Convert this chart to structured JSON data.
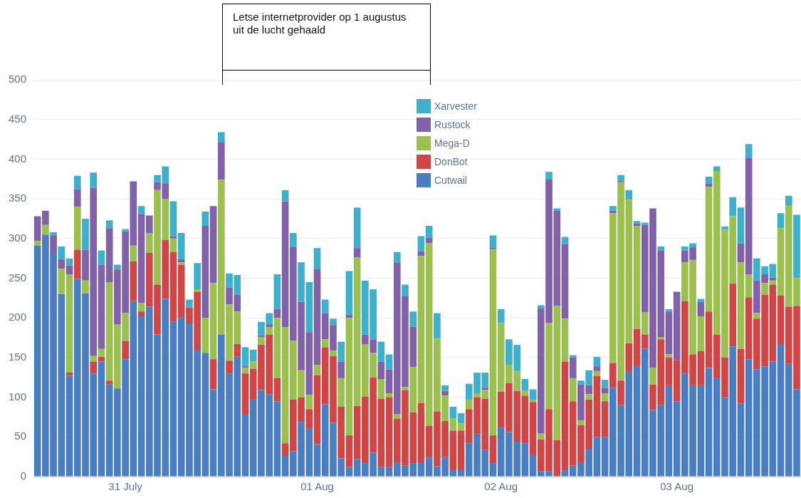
{
  "chart_data": {
    "type": "bar",
    "stacked": true,
    "categories": [
      null,
      null,
      null,
      null,
      null,
      null,
      null,
      null,
      null,
      null,
      null,
      "31 July",
      null,
      null,
      null,
      null,
      null,
      null,
      null,
      null,
      null,
      null,
      null,
      null,
      null,
      null,
      null,
      null,
      null,
      null,
      null,
      null,
      null,
      null,
      null,
      "01 Aug",
      null,
      null,
      null,
      null,
      null,
      null,
      null,
      null,
      null,
      null,
      null,
      null,
      null,
      null,
      null,
      null,
      null,
      null,
      null,
      null,
      null,
      null,
      "02 Aug",
      null,
      null,
      null,
      null,
      null,
      null,
      null,
      null,
      null,
      null,
      null,
      null,
      null,
      null,
      null,
      null,
      null,
      null,
      null,
      null,
      null,
      "03 Aug",
      null,
      null,
      null,
      null,
      null,
      null,
      null,
      null,
      null,
      null,
      null,
      null,
      null,
      null,
      null
    ],
    "series": [
      {
        "name": "Cutwail",
        "color": "#4a7ec2",
        "values": [
          291,
          305,
          281,
          230,
          127,
          249,
          231,
          130,
          145,
          116,
          111,
          148,
          221,
          202,
          214,
          179,
          224,
          195,
          201,
          193,
          159,
          156,
          110,
          179,
          130,
          151,
          79,
          97,
          109,
          104,
          95,
          26,
          32,
          69,
          61,
          41,
          91,
          68,
          23,
          12,
          22,
          17,
          30,
          12,
          12,
          18,
          14,
          17,
          17,
          24,
          13,
          25,
          9,
          9,
          42,
          54,
          34,
          17,
          62,
          56,
          44,
          42,
          27,
          7,
          7,
          0,
          8,
          14,
          18,
          35,
          50,
          50,
          112,
          90,
          132,
          140,
          161,
          84,
          90,
          115,
          95,
          130,
          115,
          115,
          137,
          124,
          100,
          164,
          92,
          148,
          135,
          139,
          145,
          167,
          142,
          110
        ]
      },
      {
        "name": "DonBot",
        "color": "#d04545",
        "values": [
          0,
          0,
          0,
          0,
          4,
          37,
          0,
          15,
          6,
          5,
          0,
          23,
          50,
          6,
          68,
          63,
          74,
          88,
          66,
          20,
          74,
          0,
          38,
          0,
          16,
          16,
          51,
          39,
          57,
          75,
          29,
          16,
          65,
          31,
          24,
          87,
          72,
          84,
          65,
          40,
          67,
          84,
          95,
          86,
          88,
          55,
          95,
          64,
          76,
          40,
          69,
          45,
          49,
          49,
          43,
          46,
          64,
          35,
          45,
          62,
          64,
          60,
          67,
          40,
          78,
          46,
          137,
          81,
          47,
          62,
          77,
          45,
          31,
          31,
          36,
          46,
          18,
          32,
          83,
          35,
          52,
          91,
          39,
          43,
          71,
          55,
          50,
          79,
          69,
          78,
          64,
          90,
          97,
          61,
          72,
          105
        ]
      },
      {
        "name": "Mega-D",
        "color": "#9bc04f",
        "values": [
          6,
          12,
          0,
          32,
          124,
          54,
          16,
          7,
          10,
          124,
          81,
          35,
          20,
          11,
          25,
          119,
          52,
          17,
          3,
          0,
          3,
          44,
          96,
          195,
          71,
          41,
          7,
          9,
          10,
          9,
          76,
          146,
          74,
          34,
          18,
          13,
          10,
          7,
          36,
          148,
          187,
          66,
          31,
          25,
          5,
          6,
          4,
          57,
          185,
          230,
          92,
          32,
          15,
          9,
          12,
          5,
          11,
          234,
          87,
          23,
          25,
          6,
          3,
          7,
          109,
          169,
          54,
          29,
          6,
          7,
          6,
          10,
          189,
          250,
          181,
          130,
          28,
          21,
          3,
          4,
          0,
          49,
          119,
          44,
          157,
          206,
          161,
          85,
          109,
          29,
          7,
          15,
          5,
          85,
          128,
          35
        ]
      },
      {
        "name": "Rustock",
        "color": "#8161a8",
        "values": [
          31,
          18,
          23,
          12,
          11,
          22,
          39,
          212,
          106,
          68,
          69,
          103,
          81,
          112,
          22,
          10,
          19,
          3,
          4,
          0,
          0,
          116,
          97,
          47,
          21,
          21,
          2,
          0,
          2,
          4,
          11,
          159,
          118,
          86,
          79,
          121,
          33,
          32,
          21,
          4,
          12,
          12,
          17,
          22,
          30,
          191,
          114,
          51,
          6,
          7,
          0,
          6,
          0,
          0,
          0,
          0,
          3,
          2,
          0,
          0,
          0,
          1,
          0,
          158,
          181,
          120,
          94,
          26,
          45,
          11,
          6,
          7,
          3,
          2,
          0,
          3,
          110,
          201,
          109,
          54,
          86,
          15,
          16,
          18,
          4,
          0,
          0,
          0,
          24,
          147,
          41,
          11,
          4,
          0,
          0,
          0
        ]
      },
      {
        "name": "Xarvester",
        "color": "#3fb0cc",
        "values": [
          0,
          0,
          4,
          16,
          9,
          17,
          39,
          19,
          18,
          10,
          6,
          3,
          0,
          10,
          0,
          9,
          22,
          44,
          33,
          10,
          33,
          18,
          0,
          13,
          18,
          25,
          24,
          15,
          17,
          14,
          44,
          14,
          18,
          50,
          63,
          26,
          17,
          8,
          25,
          55,
          51,
          68,
          63,
          25,
          19,
          13,
          15,
          19,
          19,
          15,
          32,
          7,
          15,
          13,
          20,
          26,
          19,
          16,
          17,
          32,
          33,
          14,
          13,
          4,
          9,
          3,
          9,
          3,
          5,
          19,
          12,
          10,
          6,
          7,
          12,
          3,
          3,
          0,
          5,
          3,
          0,
          5,
          5,
          4,
          9,
          6,
          4,
          24,
          45,
          17,
          28,
          10,
          17,
          19,
          12,
          80
        ]
      }
    ],
    "ylim": [
      0,
      500
    ],
    "yticks": [
      0,
      50,
      100,
      150,
      200,
      250,
      300,
      350,
      400,
      450,
      500
    ],
    "grid": "y",
    "legend": "top",
    "annotations": [
      "Letse internetprovider op 1 augustus uit de lucht gehaald"
    ]
  }
}
